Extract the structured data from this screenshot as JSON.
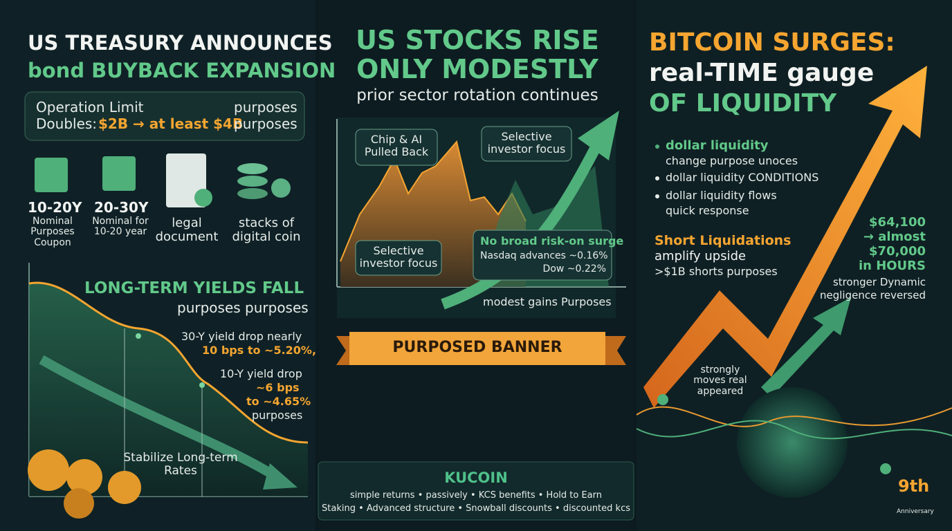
{
  "left": {
    "title": [
      "US TREASURY ANNOUNCES",
      "bond BUYBACK EXPANSION"
    ],
    "limit_box": {
      "line1": "Operation Limit",
      "line1_note": "purposes",
      "line2_label": "Doubles:",
      "line2_value": "$2B → at least $4B",
      "line2_note": "purposes"
    },
    "icons": [
      {
        "title": "10-20Y",
        "caption": "Nominal Purposes Coupon"
      },
      {
        "title": "20-30Y",
        "caption": "Nominal for 10-20 year"
      },
      {
        "caption": "legal document"
      },
      {
        "caption": "stacks of digital coin"
      }
    ],
    "yields": {
      "title": "LONG-TERM YIELDS FALL",
      "subtitle": "purposes purposes",
      "note_30y": [
        "30-Y yield drop nearly",
        "10 bps to ~5.20%,"
      ],
      "note_10y": [
        "10-Y yield drop",
        "~6 bps",
        "to ~4.65%",
        "purposes"
      ],
      "footer": "Stabilize Long-term Rates"
    }
  },
  "middle": {
    "title": [
      "US STOCKS RISE",
      "ONLY MODESTLY"
    ],
    "subtitle": "prior sector rotation continues",
    "callouts": {
      "chip": "Chip & AI Pulled Back",
      "focus_top": "Selective investor focus",
      "focus_bottom": "Selective investor focus",
      "risk_title": "No broad risk-on surge",
      "nasdaq": "Nasdaq advances ~0.16%",
      "dow": "Dow ~0.22%",
      "footer": "modest gains Purposes"
    },
    "banner": "PURPOSED BANNER",
    "kucoin": {
      "brand": "KUCOIN",
      "line1": "simple returns • passively • KCS benefits • Hold to Earn",
      "line2": "Staking • Advanced structure • Snowball discounts • discounted kcs"
    }
  },
  "right": {
    "title": [
      "BITCOIN SURGES:",
      "real-TIME gauge",
      "OF LIQUIDITY"
    ],
    "bullets": [
      {
        "head": "dollar liquidity",
        "sub": "change purpose unoces"
      },
      {
        "head": "dollar liquidity CONDITIONS"
      },
      {
        "head": "dollar liquidity flows",
        "sub": "quick response"
      }
    ],
    "shorts": {
      "title": "Short Liquidations",
      "line1": "amplify upside",
      "line2": ">$1B shorts purposes"
    },
    "price": [
      "$64,100",
      "→ almost",
      "$70,000",
      "in HOURS"
    ],
    "price_note": [
      "stronger Dynamic",
      "negligence reversed"
    ],
    "globe_note": "strongly moves real appeared",
    "anniversary": {
      "mark": "9th",
      "label": "Anniversary"
    }
  }
}
